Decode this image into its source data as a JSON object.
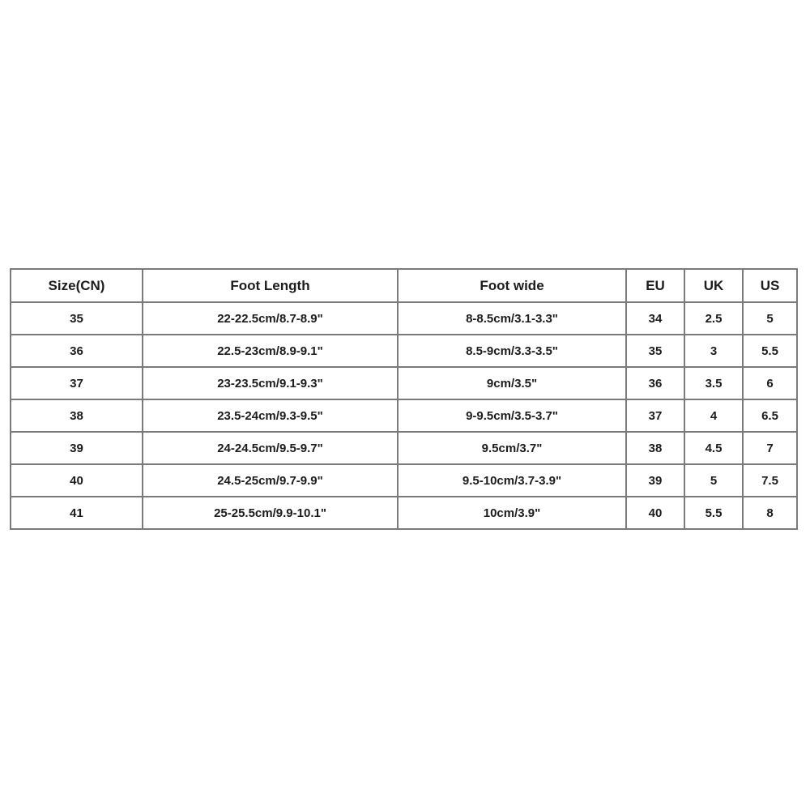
{
  "page": {
    "background_color": "#ffffff",
    "text_color": "#1c1c1c",
    "border_color": "#7a7a7a"
  },
  "chart_data": {
    "type": "table",
    "title": "",
    "columns": [
      "Size(CN)",
      "Foot Length",
      "Foot wide",
      "EU",
      "UK",
      "US"
    ],
    "rows": [
      [
        "35",
        "22-22.5cm/8.7-8.9\"",
        "8-8.5cm/3.1-3.3\"",
        "34",
        "2.5",
        "5"
      ],
      [
        "36",
        "22.5-23cm/8.9-9.1\"",
        "8.5-9cm/3.3-3.5\"",
        "35",
        "3",
        "5.5"
      ],
      [
        "37",
        "23-23.5cm/9.1-9.3\"",
        "9cm/3.5\"",
        "36",
        "3.5",
        "6"
      ],
      [
        "38",
        "23.5-24cm/9.3-9.5\"",
        "9-9.5cm/3.5-3.7\"",
        "37",
        "4",
        "6.5"
      ],
      [
        "39",
        "24-24.5cm/9.5-9.7\"",
        "9.5cm/3.7\"",
        "38",
        "4.5",
        "7"
      ],
      [
        "40",
        "24.5-25cm/9.7-9.9\"",
        "9.5-10cm/3.7-3.9\"",
        "39",
        "5",
        "7.5"
      ],
      [
        "41",
        "25-25.5cm/9.9-10.1\"",
        "10cm/3.9\"",
        "40",
        "5.5",
        "8"
      ]
    ]
  }
}
